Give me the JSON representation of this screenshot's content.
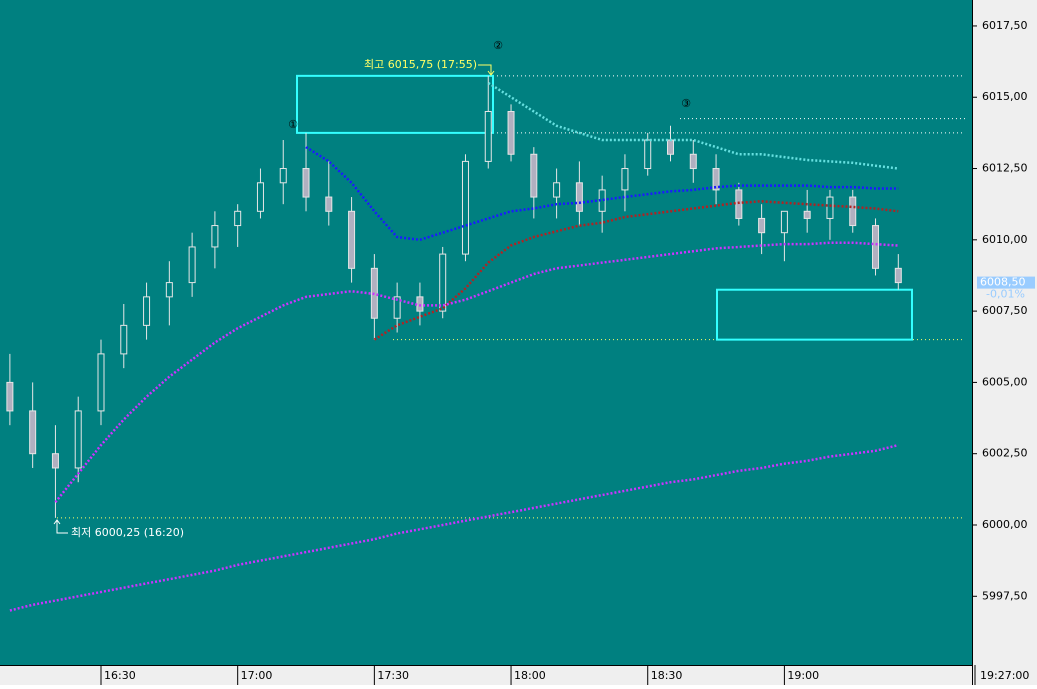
{
  "chart_data": {
    "type": "candlestick",
    "categories": [
      null,
      null,
      null,
      null,
      "16:30",
      null,
      null,
      null,
      null,
      null,
      "17:00",
      null,
      null,
      null,
      null,
      null,
      "17:30",
      null,
      null,
      null,
      null,
      null,
      "18:00",
      null,
      null,
      null,
      null,
      null,
      "18:30",
      null,
      null,
      null,
      null,
      null,
      "19:00",
      null,
      null,
      null,
      null,
      null
    ],
    "open": [
      6005.0,
      6004.0,
      6002.5,
      6002.0,
      6004.0,
      6006.0,
      6007.0,
      6008.0,
      6008.5,
      6009.75,
      6010.5,
      6011.0,
      6012.0,
      6012.5,
      6011.5,
      6011.0,
      6009.0,
      6007.25,
      6008.0,
      6007.5,
      6009.5,
      6012.75,
      6014.5,
      6013.0,
      6011.5,
      6012.0,
      6011.0,
      6011.75,
      6012.5,
      6013.5,
      6013.0,
      6012.5,
      6011.75,
      6010.75,
      6010.25,
      6011.0,
      6010.75,
      6011.5,
      6010.5,
      6009.0
    ],
    "high": [
      6006.0,
      6005.0,
      6003.5,
      6004.5,
      6006.5,
      6007.75,
      6008.5,
      6009.25,
      6010.25,
      6011.0,
      6011.25,
      6012.5,
      6013.5,
      6013.75,
      6012.75,
      6011.5,
      6009.5,
      6008.5,
      6008.5,
      6009.75,
      6013.0,
      6015.75,
      6014.75,
      6013.25,
      6012.5,
      6012.75,
      6012.25,
      6013.0,
      6013.75,
      6014.0,
      6013.5,
      6013.0,
      6012.0,
      6011.25,
      6011.0,
      6011.75,
      6011.75,
      6011.75,
      6010.75,
      6009.5
    ],
    "low": [
      6003.5,
      6002.0,
      6000.25,
      6001.5,
      6003.5,
      6005.5,
      6006.5,
      6007.0,
      6008.0,
      6009.0,
      6009.75,
      6010.75,
      6011.25,
      6011.0,
      6010.5,
      6008.5,
      6006.5,
      6006.75,
      6007.0,
      6007.25,
      6009.25,
      6012.5,
      6012.75,
      6010.75,
      6010.75,
      6010.5,
      6010.25,
      6011.0,
      6012.25,
      6012.75,
      6012.0,
      6011.25,
      6010.5,
      6009.5,
      6009.25,
      6010.25,
      6010.0,
      6010.25,
      6008.75,
      6008.25
    ],
    "close": [
      6004.0,
      6002.5,
      6002.0,
      6004.0,
      6006.0,
      6007.0,
      6008.0,
      6008.5,
      6009.75,
      6010.5,
      6011.0,
      6012.0,
      6012.5,
      6011.5,
      6011.0,
      6009.0,
      6007.25,
      6008.0,
      6007.5,
      6009.5,
      6012.75,
      6014.5,
      6013.0,
      6011.5,
      6012.0,
      6011.0,
      6011.75,
      6012.5,
      6013.5,
      6013.0,
      6012.5,
      6011.75,
      6010.75,
      6010.25,
      6011.0,
      6010.75,
      6011.5,
      6010.5,
      6009.0,
      6008.5
    ],
    "moving_averages": [
      {
        "color": "#66e0e0",
        "values": [
          null,
          null,
          null,
          null,
          null,
          null,
          null,
          null,
          null,
          null,
          null,
          null,
          null,
          null,
          null,
          null,
          null,
          null,
          null,
          null,
          null,
          6015.5,
          6015.0,
          6014.5,
          6014.0,
          6013.75,
          6013.5,
          6013.5,
          6013.5,
          6013.5,
          6013.5,
          6013.25,
          6013.0,
          6013.0,
          6012.9,
          6012.8,
          6012.75,
          6012.7,
          6012.6,
          6012.5
        ]
      },
      {
        "color": "#1a1aff",
        "values": [
          null,
          null,
          null,
          null,
          null,
          null,
          null,
          null,
          null,
          null,
          null,
          null,
          null,
          6013.25,
          6012.75,
          6012.0,
          6011.0,
          6010.1,
          6010.0,
          6010.25,
          6010.5,
          6010.75,
          6011.0,
          6011.1,
          6011.25,
          6011.3,
          6011.4,
          6011.5,
          6011.6,
          6011.7,
          6011.75,
          6011.85,
          6011.9,
          6011.9,
          6011.9,
          6011.9,
          6011.85,
          6011.85,
          6011.8,
          6011.8
        ]
      },
      {
        "color": "#b22222",
        "values": [
          null,
          null,
          null,
          null,
          null,
          null,
          null,
          null,
          null,
          null,
          null,
          null,
          null,
          null,
          null,
          null,
          6006.5,
          6007.0,
          6007.3,
          6007.6,
          6008.3,
          6009.2,
          6009.8,
          6010.1,
          6010.3,
          6010.5,
          6010.6,
          6010.8,
          6010.9,
          6011.0,
          6011.1,
          6011.2,
          6011.3,
          6011.35,
          6011.3,
          6011.25,
          6011.2,
          6011.15,
          6011.1,
          6011.0
        ]
      },
      {
        "color": "#cc33ff",
        "values": [
          null,
          null,
          6000.8,
          6001.8,
          6002.8,
          6003.7,
          6004.5,
          6005.2,
          6005.8,
          6006.4,
          6006.9,
          6007.3,
          6007.7,
          6008.0,
          6008.1,
          6008.2,
          6008.1,
          6007.9,
          6007.7,
          6007.7,
          6007.9,
          6008.2,
          6008.5,
          6008.8,
          6009.0,
          6009.1,
          6009.2,
          6009.3,
          6009.4,
          6009.5,
          6009.6,
          6009.7,
          6009.75,
          6009.8,
          6009.85,
          6009.85,
          6009.9,
          6009.9,
          6009.85,
          6009.8
        ]
      },
      {
        "color": "#cc33ff",
        "values": [
          5997.0,
          5997.2,
          5997.35,
          5997.5,
          5997.65,
          5997.8,
          5997.95,
          5998.1,
          5998.25,
          5998.4,
          5998.6,
          5998.75,
          5998.9,
          5999.05,
          5999.2,
          5999.35,
          5999.5,
          5999.7,
          5999.85,
          6000.0,
          6000.15,
          6000.3,
          6000.45,
          6000.6,
          6000.75,
          6000.9,
          6001.05,
          6001.2,
          6001.35,
          6001.5,
          6001.6,
          6001.75,
          6001.9,
          6002.0,
          6002.15,
          6002.25,
          6002.4,
          6002.5,
          6002.6,
          6002.8
        ]
      }
    ],
    "reference_lines": [
      {
        "value": 6015.75,
        "color": "#ffffff"
      },
      {
        "value": 6014.25,
        "color": "#ffffff"
      },
      {
        "value": 6013.75,
        "color": "#ffffff"
      },
      {
        "value": 6006.5,
        "color": "#ffff66"
      },
      {
        "value": 6000.25,
        "color": "#ffff66"
      }
    ],
    "boxes": [
      {
        "low": 6013.75,
        "high": 6015.75
      },
      {
        "low": 6006.5,
        "high": 6008.25
      }
    ],
    "annotations": {
      "high": "최고 6015,75 (17:55)",
      "low": "최저 6000,25 (16:20)",
      "marker1": "①",
      "marker2": "②",
      "marker3": "③"
    },
    "last_price": {
      "value": 6008.5,
      "label": "6008,50"
    },
    "change": "-0,01%",
    "cursor_time": "19:27:00",
    "ylim": [
      5995.09,
      6018.41
    ],
    "yticks": [
      {
        "value": 5997.5,
        "label": "5997,50"
      },
      {
        "value": 6000,
        "label": "6000,00"
      },
      {
        "value": 6002.5,
        "label": "6002,50"
      },
      {
        "value": 6005,
        "label": "6005,00"
      },
      {
        "value": 6007.5,
        "label": "6007,50"
      },
      {
        "value": 6010,
        "label": "6010,00"
      },
      {
        "value": 6012.5,
        "label": "6012,50"
      },
      {
        "value": 6015,
        "label": "6015,00"
      },
      {
        "value": 6017.5,
        "label": "6017,50"
      }
    ]
  }
}
